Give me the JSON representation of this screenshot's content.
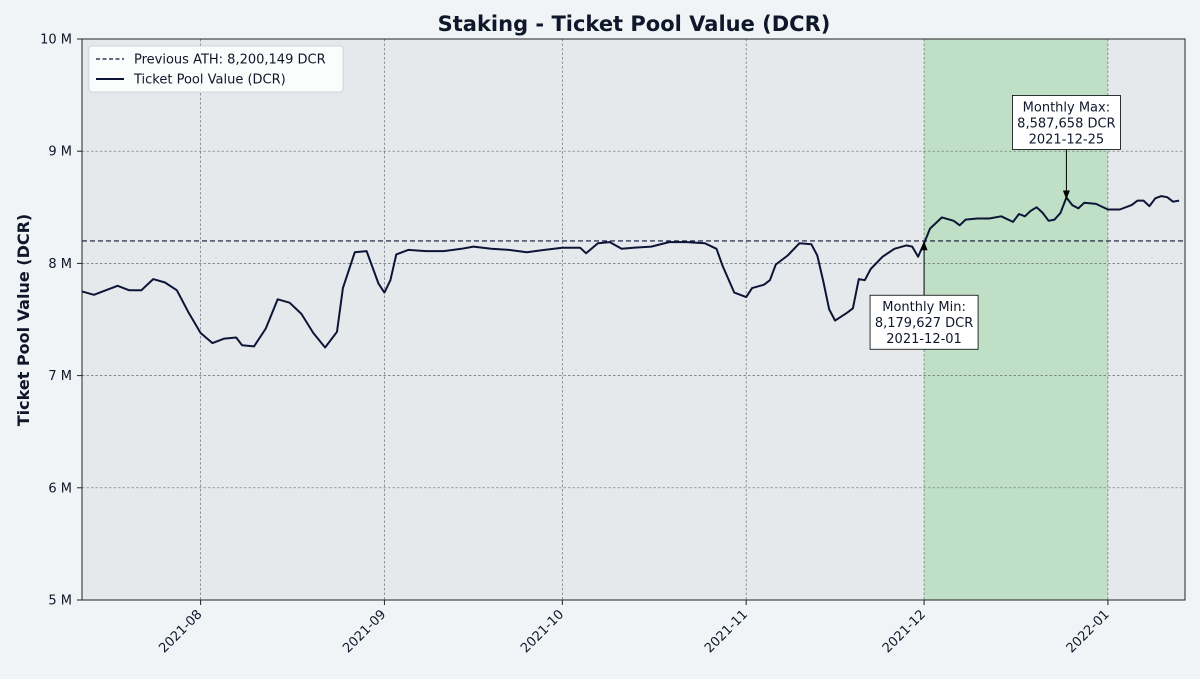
{
  "chart_data": {
    "type": "line",
    "title": "Staking - Ticket Pool Value (DCR)",
    "xlabel": "",
    "ylabel": "Ticket Pool Value (DCR)",
    "x_range": [
      "2021-07-12",
      "2022-01-14"
    ],
    "ylim": [
      5000000,
      10000000
    ],
    "y_ticks": [
      5000000,
      6000000,
      7000000,
      8000000,
      9000000,
      10000000
    ],
    "y_tick_labels": [
      "5 M",
      "6 M",
      "7 M",
      "8 M",
      "9 M",
      "10 M"
    ],
    "x_ticks": [
      "2021-08-01",
      "2021-09-01",
      "2021-10-01",
      "2021-11-01",
      "2021-12-01",
      "2022-01-01"
    ],
    "x_tick_labels": [
      "2021-08",
      "2021-09",
      "2021-10",
      "2021-11",
      "2021-12",
      "2022-01"
    ],
    "grid": true,
    "legend_position": "top-left",
    "highlight_range": {
      "start": "2021-12-01",
      "end": "2022-01-01",
      "color": "#bfe0c6"
    },
    "plot_background": "#e5e9ec",
    "reference_line": {
      "name": "Previous ATH: 8,200,149 DCR",
      "value": 8200149,
      "style": "dashed",
      "color": "#0d1536"
    },
    "series": [
      {
        "name": "Ticket Pool Value (DCR)",
        "color": "#0d1536",
        "points": [
          [
            "2021-07-12",
            7750000
          ],
          [
            "2021-07-14",
            7720000
          ],
          [
            "2021-07-16",
            7760000
          ],
          [
            "2021-07-18",
            7800000
          ],
          [
            "2021-07-20",
            7760000
          ],
          [
            "2021-07-22",
            7760000
          ],
          [
            "2021-07-24",
            7860000
          ],
          [
            "2021-07-26",
            7830000
          ],
          [
            "2021-07-28",
            7760000
          ],
          [
            "2021-07-30",
            7560000
          ],
          [
            "2021-08-01",
            7380000
          ],
          [
            "2021-08-03",
            7290000
          ],
          [
            "2021-08-05",
            7330000
          ],
          [
            "2021-08-07",
            7340000
          ],
          [
            "2021-08-08",
            7270000
          ],
          [
            "2021-08-10",
            7260000
          ],
          [
            "2021-08-12",
            7420000
          ],
          [
            "2021-08-14",
            7680000
          ],
          [
            "2021-08-16",
            7650000
          ],
          [
            "2021-08-18",
            7550000
          ],
          [
            "2021-08-20",
            7380000
          ],
          [
            "2021-08-22",
            7250000
          ],
          [
            "2021-08-24",
            7390000
          ],
          [
            "2021-08-25",
            7780000
          ],
          [
            "2021-08-27",
            8100000
          ],
          [
            "2021-08-29",
            8110000
          ],
          [
            "2021-08-31",
            7820000
          ],
          [
            "2021-09-01",
            7740000
          ],
          [
            "2021-09-02",
            7850000
          ],
          [
            "2021-09-03",
            8080000
          ],
          [
            "2021-09-05",
            8120000
          ],
          [
            "2021-09-08",
            8110000
          ],
          [
            "2021-09-11",
            8110000
          ],
          [
            "2021-09-14",
            8130000
          ],
          [
            "2021-09-16",
            8150000
          ],
          [
            "2021-09-19",
            8130000
          ],
          [
            "2021-09-22",
            8120000
          ],
          [
            "2021-09-25",
            8100000
          ],
          [
            "2021-09-28",
            8120000
          ],
          [
            "2021-10-01",
            8140000
          ],
          [
            "2021-10-04",
            8140000
          ],
          [
            "2021-10-05",
            8090000
          ],
          [
            "2021-10-07",
            8180000
          ],
          [
            "2021-10-09",
            8190000
          ],
          [
            "2021-10-11",
            8130000
          ],
          [
            "2021-10-13",
            8140000
          ],
          [
            "2021-10-16",
            8150000
          ],
          [
            "2021-10-19",
            8190000
          ],
          [
            "2021-10-22",
            8190000
          ],
          [
            "2021-10-25",
            8180000
          ],
          [
            "2021-10-27",
            8130000
          ],
          [
            "2021-10-28",
            7980000
          ],
          [
            "2021-10-30",
            7740000
          ],
          [
            "2021-11-01",
            7700000
          ],
          [
            "2021-11-02",
            7780000
          ],
          [
            "2021-11-04",
            7810000
          ],
          [
            "2021-11-05",
            7850000
          ],
          [
            "2021-11-06",
            7990000
          ],
          [
            "2021-11-08",
            8070000
          ],
          [
            "2021-11-10",
            8180000
          ],
          [
            "2021-11-12",
            8170000
          ],
          [
            "2021-11-13",
            8070000
          ],
          [
            "2021-11-14",
            7840000
          ],
          [
            "2021-11-15",
            7590000
          ],
          [
            "2021-11-16",
            7490000
          ],
          [
            "2021-11-18",
            7560000
          ],
          [
            "2021-11-19",
            7600000
          ],
          [
            "2021-11-20",
            7860000
          ],
          [
            "2021-11-21",
            7850000
          ],
          [
            "2021-11-22",
            7950000
          ],
          [
            "2021-11-24",
            8060000
          ],
          [
            "2021-11-26",
            8130000
          ],
          [
            "2021-11-28",
            8160000
          ],
          [
            "2021-11-29",
            8150000
          ],
          [
            "2021-11-30",
            8060000
          ],
          [
            "2021-12-01",
            8179627
          ],
          [
            "2021-12-02",
            8310000
          ],
          [
            "2021-12-04",
            8410000
          ],
          [
            "2021-12-06",
            8380000
          ],
          [
            "2021-12-07",
            8340000
          ],
          [
            "2021-12-08",
            8390000
          ],
          [
            "2021-12-10",
            8400000
          ],
          [
            "2021-12-12",
            8400000
          ],
          [
            "2021-12-14",
            8420000
          ],
          [
            "2021-12-16",
            8370000
          ],
          [
            "2021-12-17",
            8440000
          ],
          [
            "2021-12-18",
            8420000
          ],
          [
            "2021-12-19",
            8470000
          ],
          [
            "2021-12-20",
            8500000
          ],
          [
            "2021-12-21",
            8450000
          ],
          [
            "2021-12-22",
            8380000
          ],
          [
            "2021-12-23",
            8390000
          ],
          [
            "2021-12-24",
            8450000
          ],
          [
            "2021-12-25",
            8587658
          ],
          [
            "2021-12-26",
            8520000
          ],
          [
            "2021-12-27",
            8490000
          ],
          [
            "2021-12-28",
            8540000
          ],
          [
            "2021-12-30",
            8530000
          ],
          [
            "2022-01-01",
            8480000
          ],
          [
            "2022-01-03",
            8480000
          ],
          [
            "2022-01-05",
            8520000
          ],
          [
            "2022-01-06",
            8560000
          ],
          [
            "2022-01-07",
            8560000
          ],
          [
            "2022-01-08",
            8510000
          ],
          [
            "2022-01-09",
            8580000
          ],
          [
            "2022-01-10",
            8600000
          ],
          [
            "2022-01-11",
            8590000
          ],
          [
            "2022-01-12",
            8550000
          ],
          [
            "2022-01-13",
            8560000
          ]
        ]
      }
    ],
    "annotations": [
      {
        "name": "monthly-max",
        "lines": [
          "Monthly Max:",
          "8,587,658 DCR",
          "2021-12-25"
        ],
        "x": "2021-12-25",
        "y": 8587658,
        "placement": "above"
      },
      {
        "name": "monthly-min",
        "lines": [
          "Monthly Min:",
          "8,179,627 DCR",
          "2021-12-01"
        ],
        "x": "2021-12-01",
        "y": 8179627,
        "placement": "below"
      }
    ]
  }
}
